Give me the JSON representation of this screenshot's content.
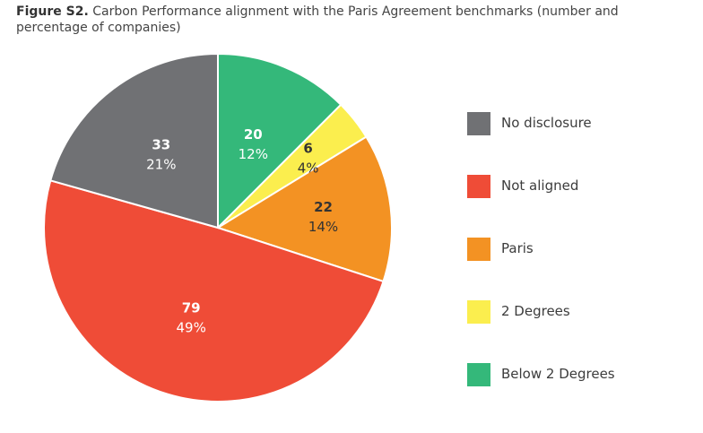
{
  "caption": {
    "figure_label": "Figure S2.",
    "text": " Carbon Performance alignment with the Paris Agreement benchmarks (number and percentage of companies)"
  },
  "chart_data": {
    "type": "pie",
    "title": "Carbon Performance alignment with the Paris Agreement benchmarks (number and percentage of companies)",
    "legend_position": "right",
    "slices": [
      {
        "name": "Below 2 Degrees",
        "value": 20,
        "percent": "12%",
        "color": "#34b87a",
        "label_color": "#ffffff"
      },
      {
        "name": "2 Degrees",
        "value": 6,
        "percent": "4%",
        "color": "#fbee4e",
        "label_color": "#333333"
      },
      {
        "name": "Paris",
        "value": 22,
        "percent": "14%",
        "color": "#f39223",
        "label_color": "#333333"
      },
      {
        "name": "Not aligned",
        "value": 79,
        "percent": "49%",
        "color": "#ef4c37",
        "label_color": "#ffffff"
      },
      {
        "name": "No disclosure",
        "value": 33,
        "percent": "21%",
        "color": "#707174",
        "label_color": "#ffffff"
      }
    ],
    "legend": [
      "No disclosure",
      "Not aligned",
      "Paris",
      "2 Degrees",
      "Below 2 Degrees"
    ]
  }
}
